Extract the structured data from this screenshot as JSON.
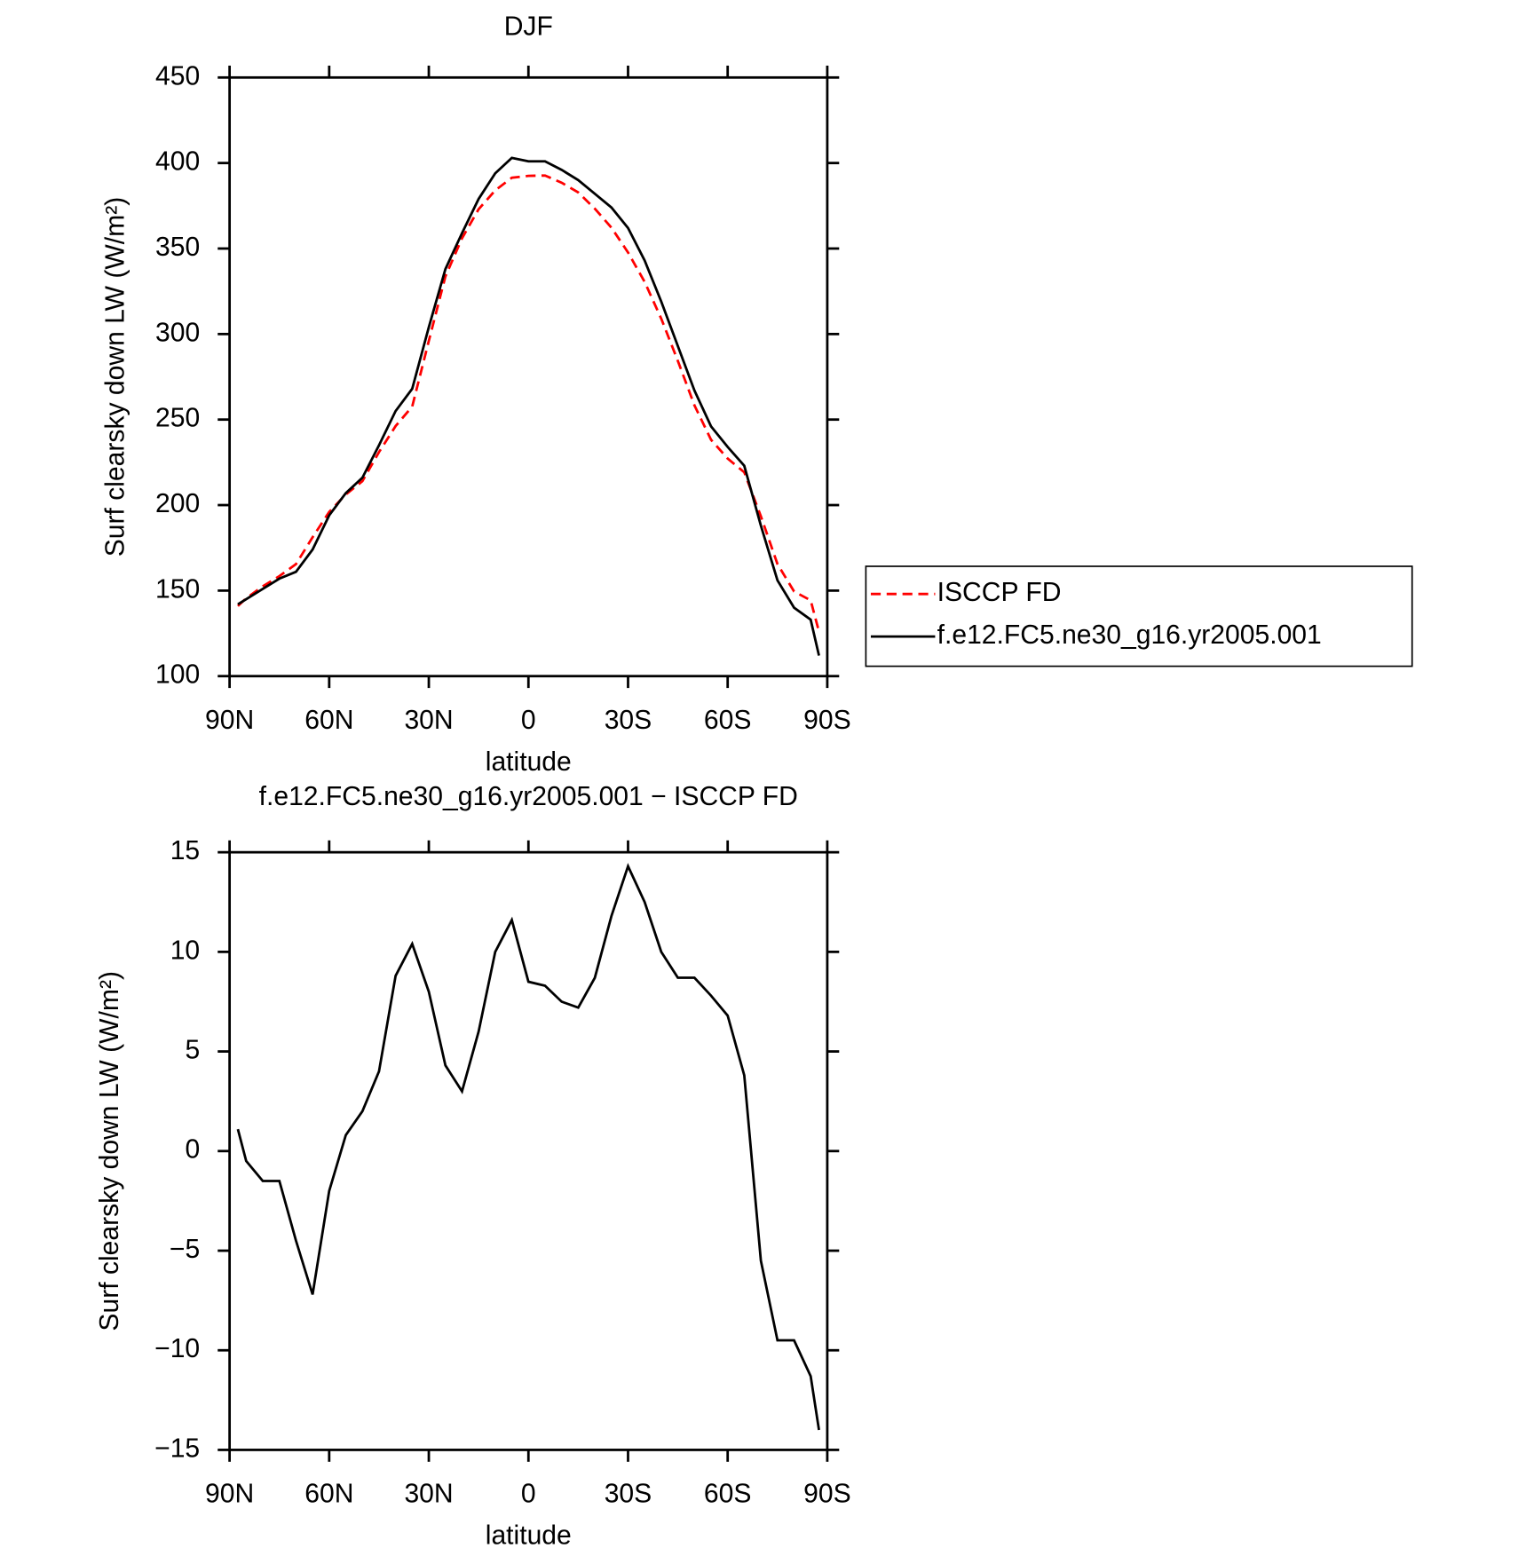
{
  "chart_data": [
    {
      "type": "line",
      "title": "DJF",
      "x_label": "latitude",
      "y_label": "Surf clearsky down LW (W/m²)",
      "x": [
        87.5,
        85,
        80,
        75,
        70,
        65,
        60,
        55,
        50,
        45,
        40,
        35,
        30,
        25,
        20,
        15,
        10,
        5,
        0,
        -5,
        -10,
        -15,
        -20,
        -25,
        -30,
        -35,
        -40,
        -45,
        -50,
        -55,
        -60,
        -65,
        -70,
        -75,
        -80,
        -85,
        -87.5
      ],
      "series": [
        {
          "name": "ISCCP FD",
          "color": "#ff0000",
          "line_style": "dashed",
          "values": [
            141,
            145.5,
            152.5,
            158.5,
            165.5,
            181.2,
            196,
            206.2,
            214,
            231,
            246.2,
            257.6,
            296,
            333.7,
            356,
            373,
            384,
            391.4,
            392.5,
            392.7,
            388.5,
            382.8,
            373.3,
            362.2,
            347.7,
            330.5,
            309,
            284.3,
            258.3,
            238.2,
            227.2,
            219.2,
            193.5,
            165.5,
            149.5,
            144.3,
            126
          ]
        },
        {
          "name": "f.e12.FC5.ne30_g16.yr2005.001",
          "color": "#000000",
          "line_style": "solid",
          "values": [
            142,
            145,
            151,
            157,
            161,
            174,
            194,
            207,
            216,
            235,
            255,
            268,
            304,
            338,
            359,
            379,
            394,
            403,
            401,
            401,
            396,
            390,
            382,
            374,
            362,
            343,
            319,
            293,
            267,
            246,
            234,
            223,
            188,
            156,
            140,
            133,
            112
          ]
        }
      ],
      "xlim": [
        90,
        -90
      ],
      "xticks": [
        {
          "value": 90,
          "label": "90N"
        },
        {
          "value": 60,
          "label": "60N"
        },
        {
          "value": 30,
          "label": "30N"
        },
        0,
        {
          "value": -30,
          "label": "30S"
        },
        {
          "value": -60,
          "label": "60S"
        },
        {
          "value": -90,
          "label": "90S"
        }
      ],
      "ylim": [
        100,
        450
      ],
      "yticks": [
        100,
        150,
        200,
        250,
        300,
        350,
        400,
        450
      ],
      "legend": "right"
    },
    {
      "type": "line",
      "title": "f.e12.FC5.ne30_g16.yr2005.001 − ISCCP FD",
      "x_label": "latitude",
      "y_label": "Surf clearsky down LW (W/m²)",
      "x": [
        87.5,
        85,
        80,
        75,
        70,
        65,
        60,
        55,
        50,
        45,
        40,
        35,
        30,
        25,
        20,
        15,
        10,
        5,
        0,
        -5,
        -10,
        -15,
        -20,
        -25,
        -30,
        -35,
        -40,
        -45,
        -50,
        -55,
        -60,
        -65,
        -70,
        -75,
        -80,
        -85,
        -87.5
      ],
      "color": "#000000",
      "values": [
        1.1,
        -0.5,
        -1.5,
        -1.5,
        -4.5,
        -7.2,
        -2,
        0.8,
        2,
        4,
        8.8,
        10.4,
        8,
        4.3,
        3,
        6,
        10,
        11.6,
        8.5,
        8.3,
        7.5,
        7.2,
        8.7,
        11.8,
        14.3,
        12.5,
        10,
        8.7,
        8.7,
        7.8,
        6.8,
        3.8,
        -5.5,
        -9.5,
        -9.5,
        -11.3,
        -14
      ],
      "xlim": [
        90,
        -90
      ],
      "xticks": [
        {
          "value": 90,
          "label": "90N"
        },
        {
          "value": 60,
          "label": "60N"
        },
        {
          "value": 30,
          "label": "30N"
        },
        0,
        {
          "value": -30,
          "label": "30S"
        },
        {
          "value": -60,
          "label": "60S"
        },
        {
          "value": -90,
          "label": "90S"
        }
      ],
      "ylim": [
        -15,
        15
      ],
      "yticks": [
        {
          "value": -15,
          "label": "−15"
        },
        {
          "value": -10,
          "label": "−10"
        },
        {
          "value": -5,
          "label": "−5"
        },
        0,
        5,
        10,
        15
      ]
    }
  ]
}
